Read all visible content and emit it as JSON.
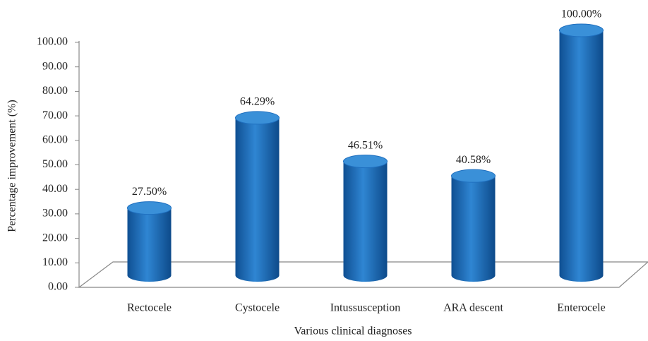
{
  "chart_data": {
    "type": "bar",
    "categories": [
      "Rectocele",
      "Cystocele",
      "Intussusception",
      "ARA descent",
      "Enterocele"
    ],
    "values": [
      27.5,
      64.29,
      46.51,
      40.58,
      100
    ],
    "value_labels": [
      "27.50%",
      "64.29%",
      "46.51%",
      "40.58%",
      "100.00%"
    ],
    "color": "#1f6fbf",
    "ylim": [
      0,
      100
    ],
    "yticks": [
      {
        "value": 0,
        "label": "0.00"
      },
      {
        "value": 10,
        "label": "10.00"
      },
      {
        "value": 20,
        "label": "20.00"
      },
      {
        "value": 30,
        "label": "30.00"
      },
      {
        "value": 40,
        "label": "40.00"
      },
      {
        "value": 50,
        "label": "50.00"
      },
      {
        "value": 60,
        "label": "60.00"
      },
      {
        "value": 70,
        "label": "70.00"
      },
      {
        "value": 80,
        "label": "80.00"
      },
      {
        "value": 90,
        "label": "90.00"
      },
      {
        "value": 100,
        "label": "100.00"
      }
    ],
    "xlabel": "Various clinical diagnoses",
    "ylabel": "Percentage improvement (%)"
  }
}
